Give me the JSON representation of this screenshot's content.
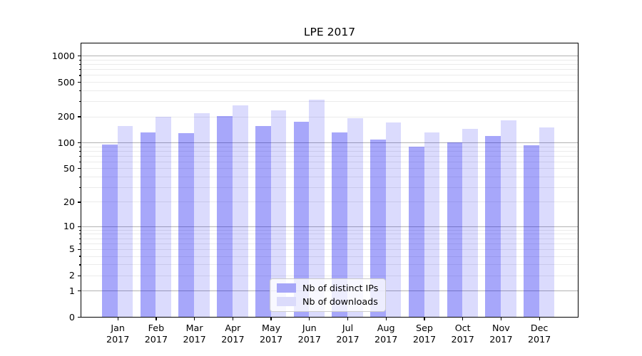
{
  "figure_title": "LPE 2017",
  "chart_data": {
    "type": "bar",
    "title": "LPE 2017",
    "categories": [
      "Jan 2017",
      "Feb 2017",
      "Mar 2017",
      "Apr 2017",
      "May 2017",
      "Jun 2017",
      "Jul 2017",
      "Aug 2017",
      "Sep 2017",
      "Oct 2017",
      "Nov 2017",
      "Dec 2017"
    ],
    "series": [
      {
        "name": "Nb of distinct IPs",
        "color": "#a6a6f8",
        "bar_rgba": "rgba(2,2,242,0.35)",
        "values": [
          95,
          131,
          128,
          201,
          156,
          174,
          131,
          108,
          89,
          101,
          120,
          93
        ]
      },
      {
        "name": "Nb of downloads",
        "color": "#dbdbfb",
        "bar_rgba": "rgba(2,2,242,0.14)",
        "values": [
          155,
          198,
          217,
          267,
          235,
          313,
          190,
          172,
          130,
          143,
          182,
          149
        ]
      }
    ],
    "y_axis": {
      "scale": "log1p",
      "tick_values": [
        1000,
        500,
        200,
        100,
        50,
        20,
        10,
        5,
        2,
        1,
        0
      ],
      "range_top": 1400
    },
    "x_axis": {
      "tick_labels": [
        "Jan\n2017",
        "Feb\n2017",
        "Mar\n2017",
        "Apr\n2017",
        "May\n2017",
        "Jun\n2017",
        "Jul\n2017",
        "Aug\n2017",
        "Sep\n2017",
        "Oct\n2017",
        "Nov\n2017",
        "Dec\n2017"
      ]
    },
    "grid": {
      "horizontal": true,
      "major_color": "#b2b2b2",
      "minor_color": "#ebebeb"
    },
    "legend": {
      "position": "lower-center",
      "entries": [
        "Nb of distinct IPs",
        "Nb of downloads"
      ]
    }
  }
}
